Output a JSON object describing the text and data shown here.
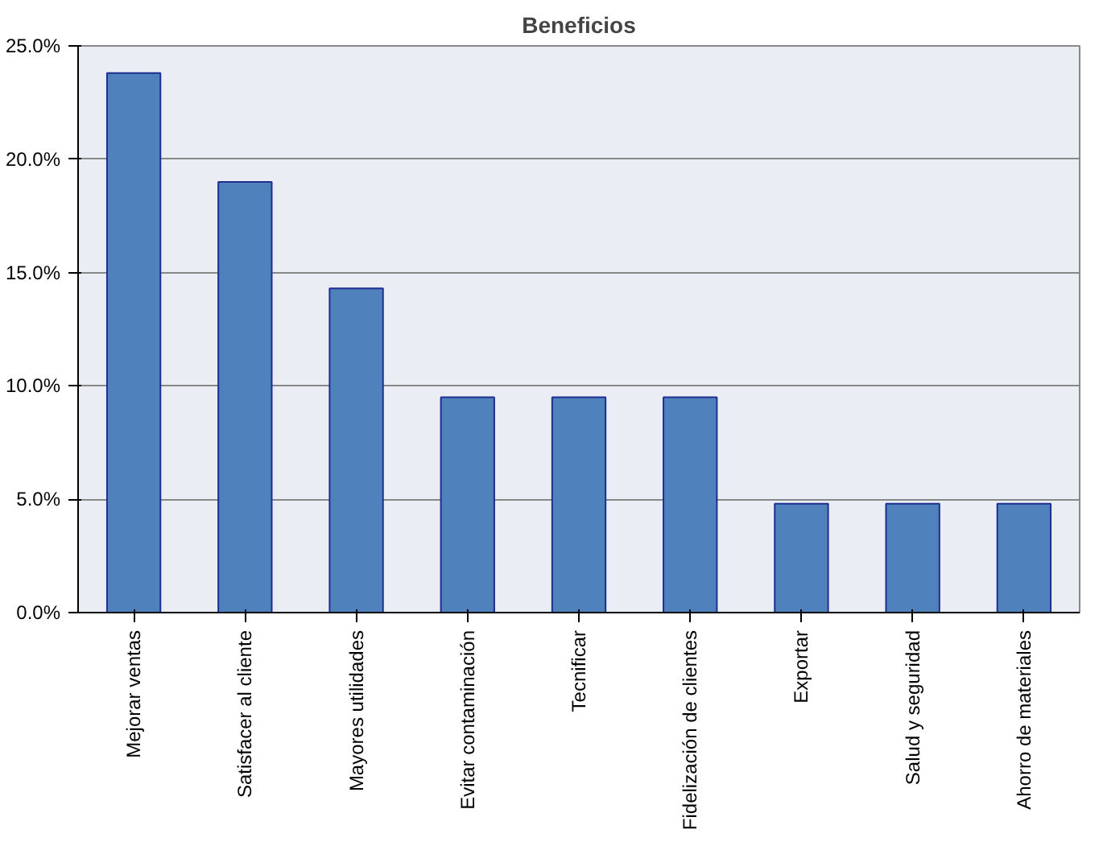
{
  "chart_data": {
    "type": "bar",
    "title": "Beneficios",
    "categories": [
      "Mejorar ventas",
      "Satisfacer al cliente",
      "Mayores utilidades",
      "Evitar contaminación",
      "Tecnificar",
      "Fidelización de clientes",
      "Exportar",
      "Salud y seguridad",
      "Ahorro de materiales"
    ],
    "values": [
      23.8,
      19.0,
      14.3,
      9.5,
      9.5,
      9.5,
      4.8,
      4.8,
      4.8
    ],
    "color": "#4f81bd",
    "ylim": [
      0,
      25
    ],
    "yticks": [
      {
        "value": 0,
        "label": "0.0%"
      },
      {
        "value": 5,
        "label": "5.0%"
      },
      {
        "value": 10,
        "label": "10.0%"
      },
      {
        "value": 15,
        "label": "15.0%"
      },
      {
        "value": 20,
        "label": "20.0%"
      },
      {
        "value": 25,
        "label": "25.0%"
      }
    ],
    "grid": "y"
  }
}
